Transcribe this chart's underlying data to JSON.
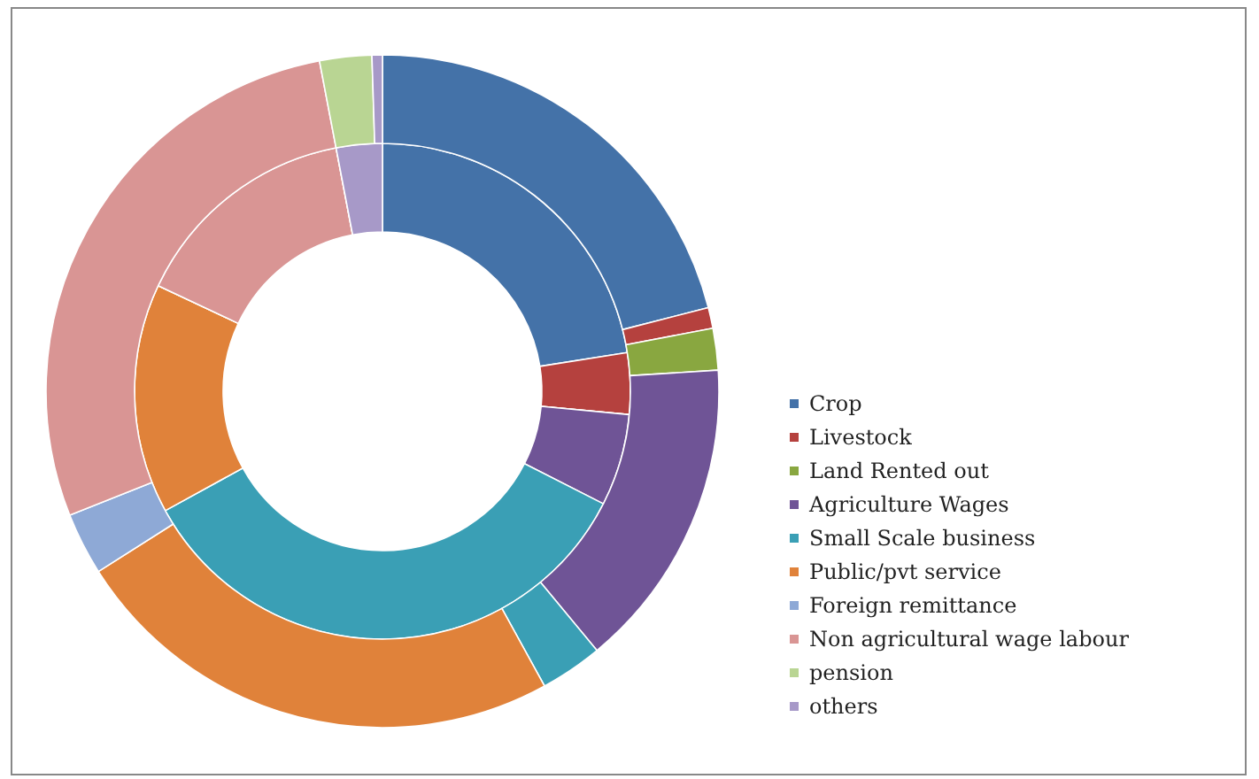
{
  "chart_data": {
    "type": "donut",
    "categories": [
      "Crop",
      "Livestock",
      "Land Rented out",
      "Agriculture Wages",
      "Small Scale business",
      "Public/pvt service",
      "Foreign remittance",
      "Non agricultural wage labour",
      "pension",
      "others"
    ],
    "colors": [
      "#4472a8",
      "#b5413e",
      "#89a740",
      "#6f5496",
      "#3a9fb5",
      "#e0823a",
      "#8ea9d6",
      "#d99594",
      "#b9d593",
      "#a799c8"
    ],
    "series": [
      {
        "values": [
          22.5,
          4,
          0,
          6,
          34.5,
          15,
          0,
          15,
          0,
          3
        ]
      },
      {
        "values": [
          21,
          1,
          2,
          15,
          3,
          24,
          3,
          28,
          2.5,
          0.5
        ]
      }
    ],
    "legend": "right"
  }
}
